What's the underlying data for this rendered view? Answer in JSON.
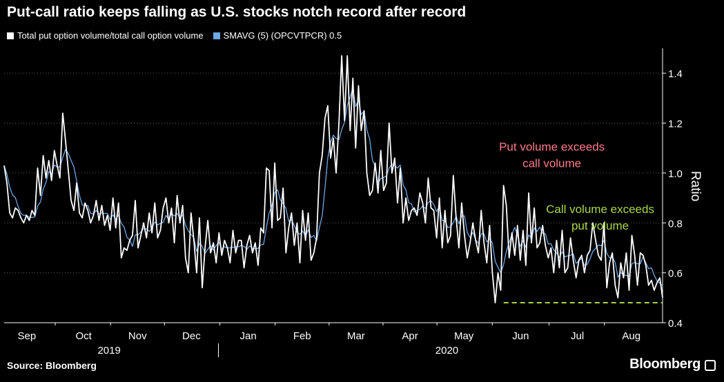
{
  "title": "Put-call ratio keeps falling as U.S. stocks notch record after record",
  "legend": [
    {
      "label": "Total put option volume/total call option volume",
      "color": "#ffffff"
    },
    {
      "label": "SMAVG (5) (OPCVTPCR) 0.5",
      "color": "#6ea8e6"
    }
  ],
  "source": "Source: Bloomberg",
  "brand": "Bloomberg",
  "chart_data": {
    "type": "line",
    "title": "Put-call ratio keeps falling as U.S. stocks notch record after record",
    "ylabel": "Ratio",
    "ylim": [
      0.4,
      1.5
    ],
    "yticks": [
      0.4,
      0.6,
      0.8,
      1.0,
      1.2,
      1.4
    ],
    "ytick_labels": [
      "0.4",
      "0.6",
      "0.8",
      "1.0",
      "1.2",
      "1.4"
    ],
    "xlim": [
      0,
      232
    ],
    "months": [
      {
        "label": "Sep",
        "x": 8
      },
      {
        "label": "Oct",
        "x": 28
      },
      {
        "label": "Nov",
        "x": 47
      },
      {
        "label": "Dec",
        "x": 66
      },
      {
        "label": "Jan",
        "x": 86
      },
      {
        "label": "Feb",
        "x": 105
      },
      {
        "label": "Mar",
        "x": 124
      },
      {
        "label": "Apr",
        "x": 143
      },
      {
        "label": "May",
        "x": 162
      },
      {
        "label": "Jun",
        "x": 182
      },
      {
        "label": "Jul",
        "x": 202
      },
      {
        "label": "Aug",
        "x": 221
      }
    ],
    "years": [
      {
        "label": "2019",
        "x": 37
      },
      {
        "label": "2020",
        "x": 156
      }
    ],
    "year_divider_x": 75.5,
    "annotations": [
      {
        "lines": [
          "Put volume exceeds",
          "call volume"
        ],
        "x": 193,
        "y": 1.09,
        "color": "#ff7a8a"
      },
      {
        "lines": [
          "Call volume exceeds",
          "put volume"
        ],
        "x": 210,
        "y": 0.84,
        "color": "#a8d84a"
      }
    ],
    "threshold": {
      "y": 0.48,
      "x_start": 176,
      "x_end": 232,
      "color": "#a8d84a"
    },
    "series": [
      {
        "name": "Total put option volume/total call option volume",
        "color": "#ffffff",
        "values": [
          1.03,
          0.96,
          0.84,
          0.82,
          0.86,
          0.85,
          0.82,
          0.8,
          0.83,
          0.81,
          0.85,
          0.83,
          1.02,
          0.91,
          1.07,
          0.98,
          1.05,
          0.97,
          1.09,
          1.03,
          0.98,
          1.24,
          1.13,
          1.01,
          0.89,
          0.85,
          0.96,
          0.84,
          0.82,
          0.88,
          0.85,
          0.8,
          0.83,
          0.89,
          0.81,
          0.87,
          0.79,
          0.83,
          0.77,
          0.9,
          0.78,
          0.88,
          0.66,
          0.7,
          0.69,
          0.73,
          0.75,
          0.89,
          0.7,
          0.75,
          0.8,
          0.74,
          0.84,
          0.76,
          0.88,
          0.74,
          0.77,
          0.86,
          0.9,
          0.8,
          0.86,
          0.72,
          0.91,
          0.8,
          0.87,
          0.66,
          0.6,
          0.84,
          0.73,
          0.6,
          0.82,
          0.54,
          0.7,
          0.81,
          0.68,
          0.72,
          0.64,
          0.76,
          0.67,
          0.73,
          0.7,
          0.64,
          0.77,
          0.68,
          0.73,
          0.73,
          0.62,
          0.71,
          0.75,
          0.68,
          0.72,
          0.63,
          0.78,
          0.76,
          1.02,
          1.01,
          0.78,
          1.04,
          0.81,
          0.82,
          0.94,
          0.68,
          0.78,
          0.84,
          0.71,
          0.8,
          0.64,
          0.85,
          0.73,
          0.84,
          0.65,
          0.68,
          0.74,
          1.0,
          1.07,
          1.22,
          1.27,
          1.06,
          1.14,
          1.0,
          1.2,
          1.47,
          1.21,
          1.47,
          1.17,
          1.38,
          1.1,
          1.35,
          1.17,
          1.25,
          1.0,
          0.91,
          0.93,
          1.04,
          0.92,
          1.09,
          0.93,
          0.96,
          1.2,
          1.0,
          1.06,
          0.88,
          1.02,
          0.8,
          0.9,
          0.81,
          0.85,
          0.86,
          0.83,
          0.92,
          0.88,
          0.8,
          0.98,
          0.86,
          0.85,
          0.74,
          0.9,
          0.7,
          0.85,
          0.72,
          0.75,
          0.99,
          0.82,
          0.7,
          0.88,
          0.75,
          0.66,
          0.72,
          0.8,
          0.73,
          0.68,
          0.85,
          0.72,
          0.64,
          0.79,
          0.6,
          0.48,
          0.6,
          0.53,
          0.95,
          0.87,
          0.66,
          0.76,
          0.67,
          0.79,
          0.65,
          0.77,
          0.63,
          0.92,
          0.72,
          0.86,
          0.7,
          0.72,
          0.79,
          0.71,
          0.66,
          0.7,
          0.6,
          0.73,
          0.62,
          0.77,
          0.6,
          0.62,
          0.74,
          0.65,
          0.58,
          0.65,
          0.67,
          0.6,
          0.67,
          0.69,
          0.8,
          0.73,
          0.67,
          0.65,
          0.8,
          0.54,
          0.64,
          0.68,
          0.55,
          0.5,
          0.64,
          0.58,
          0.68,
          0.53,
          0.75,
          0.67,
          0.55,
          0.68,
          0.67,
          0.63,
          0.55,
          0.57,
          0.53,
          0.56,
          0.58,
          0.5
        ]
      },
      {
        "name": "SMAVG (5) (OPCVTPCR) 0.5",
        "color": "#6ea8e6",
        "values": []
      }
    ]
  }
}
